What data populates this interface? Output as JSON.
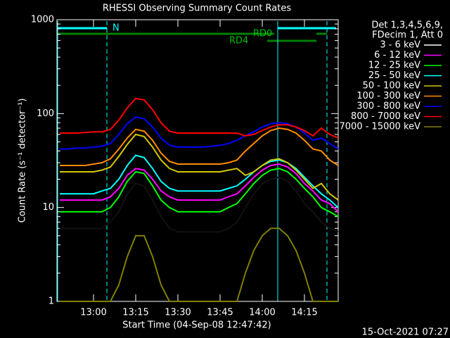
{
  "chart_data": {
    "type": "line",
    "title": "RHESSI Observing Summary Count Rates",
    "x_label": "Start Time (04-Sep-08 12:47:42)",
    "y_label": "Count Rate (s⁻¹ detector⁻¹)",
    "legend_header": [
      "Det 1,3,4,5,6,9,",
      "FDecim 1, Att 0"
    ],
    "annotations": [
      "N",
      "RD0",
      "RD4"
    ],
    "footer": "15-Oct-2021 07:27",
    "log_y": true,
    "xlim": [
      "12:47",
      "14:27"
    ],
    "xticks": [
      "13:00",
      "13:15",
      "13:30",
      "13:45",
      "14:00",
      "14:15"
    ],
    "ylim": [
      1,
      1000
    ],
    "yticks": [
      1,
      10,
      100,
      1000
    ],
    "x": [
      "12:48",
      "12:51",
      "12:54",
      "12:57",
      "13:00",
      "13:03",
      "13:06",
      "13:09",
      "13:12",
      "13:15",
      "13:18",
      "13:21",
      "13:24",
      "13:27",
      "13:30",
      "13:33",
      "13:36",
      "13:39",
      "13:42",
      "13:45",
      "13:48",
      "13:51",
      "13:54",
      "13:57",
      "14:00",
      "14:03",
      "14:06",
      "14:09",
      "14:12",
      "14:15",
      "14:18",
      "14:21",
      "14:24",
      "14:27"
    ],
    "series": [
      {
        "name": "3 - 6 keV",
        "color": "#000000",
        "values": [
          6,
          6,
          6,
          6,
          6,
          6,
          7,
          9,
          14,
          18,
          17,
          12,
          8,
          6,
          5.5,
          5.5,
          5.5,
          5.5,
          5.5,
          5.5,
          6,
          7,
          10,
          14,
          18,
          20,
          21,
          19,
          15,
          11,
          9,
          7,
          6,
          5.5
        ]
      },
      {
        "name": "6 - 12 keV",
        "color": "#ff00ff",
        "values": [
          12,
          12,
          12,
          12,
          12,
          12,
          13,
          16,
          22,
          26,
          25,
          20,
          15,
          13,
          12,
          12,
          12,
          12,
          12,
          12,
          13,
          14,
          17,
          21,
          25,
          28,
          29,
          27,
          23,
          18,
          15,
          12,
          11,
          9
        ]
      },
      {
        "name": "12 - 25 keV",
        "color": "#00ff00",
        "values": [
          9,
          9,
          9,
          9,
          9,
          9,
          10,
          13,
          19,
          24,
          23,
          17,
          12,
          10,
          9,
          9,
          9,
          9,
          9,
          9,
          10,
          11,
          14,
          18,
          22,
          25,
          26,
          24,
          20,
          16,
          13,
          10,
          9,
          8
        ]
      },
      {
        "name": "25 - 50 keV",
        "color": "#00ffff",
        "values": [
          14,
          14,
          14,
          14,
          14,
          15,
          16,
          20,
          28,
          36,
          34,
          26,
          19,
          16,
          15,
          15,
          15,
          15,
          15,
          15,
          16,
          17,
          20,
          24,
          28,
          31,
          32,
          30,
          26,
          21,
          17,
          14,
          12,
          10
        ]
      },
      {
        "name": "50 - 100 keV",
        "color": "#d4c800",
        "values": [
          24,
          24,
          24,
          24,
          24,
          25,
          27,
          35,
          47,
          60,
          57,
          44,
          32,
          26,
          24,
          24,
          24,
          24,
          24,
          24,
          25,
          26,
          22,
          24,
          28,
          32,
          33,
          30,
          25,
          20,
          16,
          18,
          14,
          12
        ]
      },
      {
        "name": "100 - 300 keV",
        "color": "#ff8c00",
        "values": [
          28,
          28,
          28,
          28,
          29,
          30,
          33,
          42,
          55,
          68,
          65,
          52,
          38,
          31,
          29,
          29,
          29,
          29,
          29,
          29,
          30,
          32,
          40,
          48,
          58,
          66,
          70,
          68,
          62,
          52,
          42,
          40,
          32,
          28
        ]
      },
      {
        "name": "300 - 800 keV",
        "color": "#0000ff",
        "values": [
          42,
          42,
          43,
          43,
          44,
          45,
          48,
          60,
          78,
          92,
          88,
          72,
          55,
          46,
          44,
          44,
          44,
          44,
          45,
          46,
          48,
          52,
          58,
          64,
          72,
          78,
          80,
          78,
          72,
          62,
          52,
          55,
          48,
          42
        ]
      },
      {
        "name": "800 - 7000 keV",
        "color": "#ff0000",
        "values": [
          62,
          62,
          62,
          63,
          64,
          64,
          68,
          85,
          115,
          145,
          140,
          110,
          80,
          65,
          62,
          62,
          62,
          62,
          62,
          62,
          62,
          62,
          58,
          60,
          66,
          72,
          76,
          76,
          72,
          66,
          58,
          70,
          60,
          55
        ]
      },
      {
        "name": "7000 - 15000 keV",
        "color": "#808000",
        "values": [
          1,
          1,
          1,
          1,
          1,
          1,
          1,
          1.5,
          3,
          5,
          5,
          3,
          1.5,
          1,
          1,
          1,
          1,
          1,
          1,
          1,
          1,
          1,
          2,
          3.5,
          5,
          6,
          6,
          5,
          3.5,
          2,
          1,
          1,
          1,
          1
        ]
      }
    ]
  }
}
